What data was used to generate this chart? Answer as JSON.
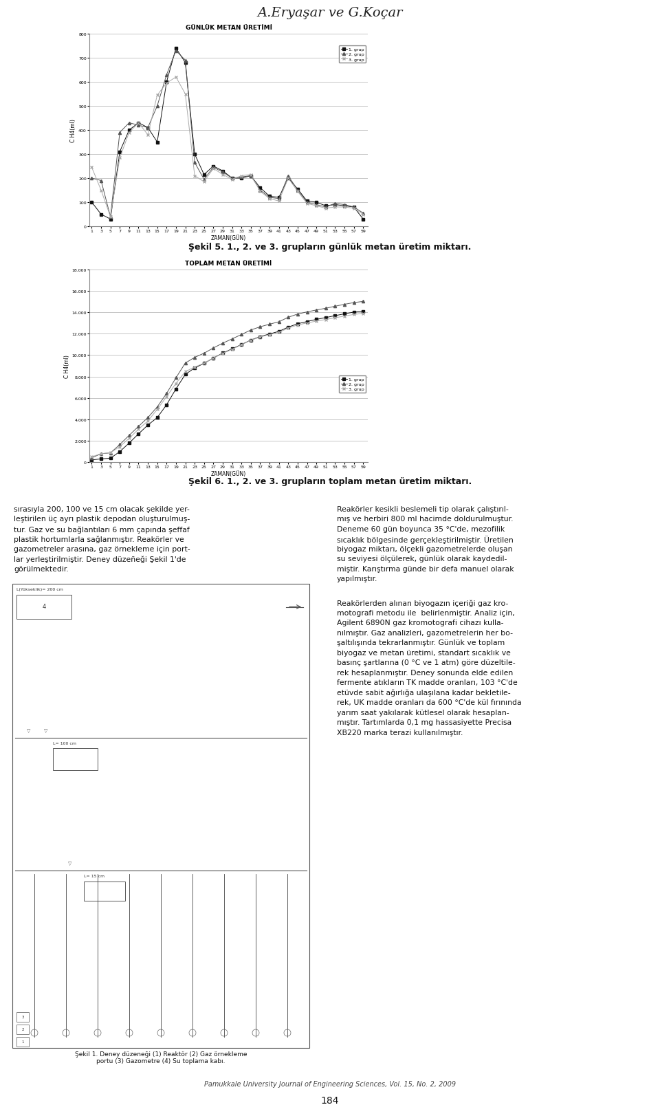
{
  "title_author": "A.Eryaşar ve G.Koçar",
  "chart1_title": "GÜNLÜK METAN ÜRETİMİ",
  "chart1_xlabel": "ZAMAN(GÜN)",
  "chart1_ylabel": "C H4(ml)",
  "chart1_ylim": [
    0,
    800
  ],
  "chart1_yticks": [
    0,
    100,
    200,
    300,
    400,
    500,
    600,
    700,
    800
  ],
  "chart2_title": "TOPLAM METAN ÜRETİMİ",
  "chart2_xlabel": "ZAMAN(GÜN)",
  "chart2_ylabel": "C H4(ml)",
  "chart2_ylim": [
    0,
    18000
  ],
  "chart2_yticks": [
    0,
    2000,
    4000,
    6000,
    8000,
    10000,
    12000,
    14000,
    16000,
    18000
  ],
  "caption1": "Şekil 5. 1., 2. ve 3. grupların günlük metan üretim miktarı.",
  "caption2": "Şekil 6. 1., 2. ve 3. grupların toplam metan üretim miktarı.",
  "legend_labels": [
    "1. grup",
    "2. grup",
    "3. grup"
  ],
  "xdata": [
    1,
    3,
    5,
    7,
    9,
    11,
    13,
    15,
    17,
    19,
    21,
    23,
    25,
    27,
    29,
    31,
    33,
    35,
    37,
    39,
    41,
    43,
    45,
    47,
    49,
    51,
    53,
    55,
    57,
    59
  ],
  "group1_daily": [
    100,
    50,
    30,
    310,
    400,
    430,
    410,
    350,
    600,
    740,
    680,
    300,
    215,
    250,
    230,
    200,
    200,
    210,
    160,
    125,
    120,
    200,
    155,
    105,
    100,
    85,
    90,
    85,
    80,
    30
  ],
  "group2_daily": [
    200,
    190,
    40,
    390,
    430,
    420,
    410,
    500,
    630,
    730,
    690,
    265,
    195,
    245,
    225,
    200,
    205,
    210,
    150,
    120,
    115,
    210,
    150,
    100,
    90,
    80,
    95,
    90,
    80,
    55
  ],
  "group3_daily": [
    245,
    150,
    40,
    285,
    390,
    430,
    380,
    545,
    595,
    620,
    550,
    210,
    185,
    240,
    215,
    195,
    210,
    215,
    145,
    115,
    105,
    200,
    145,
    95,
    85,
    75,
    80,
    80,
    75,
    50
  ],
  "group1_cumul": [
    200,
    300,
    360,
    980,
    1780,
    2640,
    3460,
    4160,
    5360,
    6840,
    8200,
    8800,
    9230,
    9730,
    10190,
    10590,
    10990,
    11410,
    11730,
    11980,
    12220,
    12620,
    12930,
    13140,
    13340,
    13510,
    13690,
    13860,
    14020,
    14080
  ],
  "group2_cumul": [
    400,
    780,
    860,
    1640,
    2500,
    3340,
    4160,
    5160,
    6420,
    7880,
    9260,
    9790,
    10180,
    10670,
    11120,
    11520,
    11930,
    12350,
    12650,
    12890,
    13120,
    13540,
    13840,
    14040,
    14220,
    14380,
    14570,
    14750,
    14910,
    15020
  ],
  "group3_cumul": [
    490,
    790,
    870,
    1440,
    2220,
    3080,
    3840,
    4930,
    6120,
    7360,
    8460,
    8880,
    9250,
    9730,
    10160,
    10550,
    10970,
    11400,
    11690,
    11920,
    12130,
    12530,
    12820,
    13010,
    13180,
    13330,
    13490,
    13650,
    13800,
    13900
  ],
  "body_left_text": [
    "sırasıyla 200, 100 ve 15 cm olacak şekilde yer-",
    "leştirilen üç ayrı plastik depodan oluşturulmuş-",
    "tur. Gaz ve su bağlantıları 6 mm çapında şeffaf",
    "plastik hortumlarla sağlanmıştır. Reakörler ve",
    "gazometreler arasına, gaz örnekleme için port-",
    "lar yerleştirilmiştir. Deney düzeñeği Şekil 1'de",
    "görülmektedir."
  ],
  "body_right_text": [
    "Reakörler kesikli beslemeli tip olarak çalıştırıl-",
    "mış ve herbiri 800 ml hacimde doldurulmuştur.",
    "Deneme 60 gün boyunca 35 °C'de, mezofilik",
    "sıcaklık bölgesinde gerçekleştirilmiştir. Üretilen",
    "biyogaz miktarı, ölçekli gazometrelerde oluşan",
    "su seviyesi ölçülerek, günlük olarak kaydedil-",
    "miştir. Karıştırma günde bir defa manuel olarak",
    "yapılmıştır."
  ],
  "body_right_text2": [
    "Reakörlerden alınan biyogazın içeriği gaz kro-",
    "motografi metodu ile  belirlenmiştir. Analiz için,",
    "Agilent 6890N gaz kromotografi cihazı kulla-",
    "nılmıştır. Gaz analizleri, gazometrelerin her bo-",
    "şaltılışında tekrarlanmıştır. Günlük ve toplam",
    "biyogaz ve metan üretimi, standart sıcaklık ve",
    "basınç şartlarına (0 °C ve 1 atm) göre düzeltile-",
    "rek hesaplanmıştır. Deney sonunda elde edilen",
    "fermente atıkların TK madde oranları, 103 °C'de",
    "etüvde sabit ağırlığa ulaşılana kadar bekletile-",
    "rek, UK madde oranları da 600 °C'de kül fırınında",
    "yarım saat yakılarak kütlesel olarak hesaplan-",
    "mıştır. Tartımlarda 0,1 mg hassasiyette Precisa",
    "XB220 marka terazi kullanılmıştır."
  ],
  "caption_figure": "Şekil 1. Deney düzeneği (1) Reaktör (2) Gaz örnekleme\nportu (3) Gazometre (4) Su toplama kabı.",
  "footer": "Pamukkale University Journal of Engineering Sciences, Vol. 15, No. 2, 2009",
  "footer_page": "184",
  "bg_color": "#ffffff",
  "line_color1": "#111111",
  "line_color2": "#555555",
  "line_color3": "#aaaaaa",
  "chart_bg": "#ffffff",
  "grid_color": "#bbbbbb"
}
